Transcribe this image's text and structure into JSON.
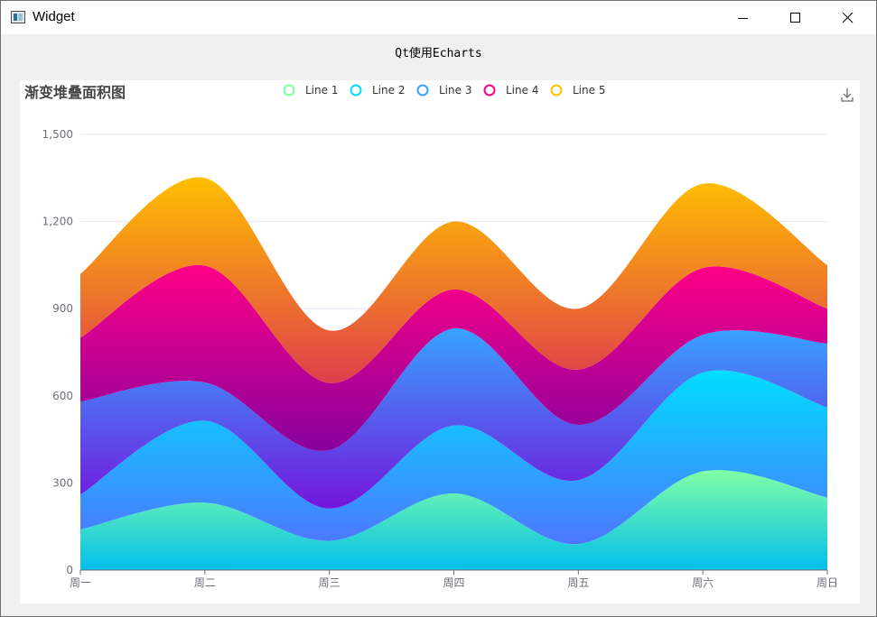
{
  "window": {
    "title": "Widget",
    "caption": "Qt使用Echarts"
  },
  "controls": {
    "minimize": "minimize",
    "maximize": "maximize",
    "close": "close"
  },
  "toolbox": {
    "save_icon": "download-icon"
  },
  "chart_data": {
    "type": "area",
    "stacked": true,
    "smooth": true,
    "title": "渐变堆叠面积图",
    "categories": [
      "周一",
      "周二",
      "周三",
      "周四",
      "周五",
      "周六",
      "周日"
    ],
    "y_ticks": [
      "0",
      "300",
      "600",
      "900",
      "1,200",
      "1,500"
    ],
    "ylim": [
      0,
      1500
    ],
    "grid": "horizontal",
    "legend_position": "top-center",
    "series": [
      {
        "name": "Line 1",
        "values": [
          140,
          232,
          101,
          264,
          90,
          340,
          250
        ],
        "legend_color": "#80FFA5",
        "gradient": [
          "#80FFA5",
          "#01BFEC"
        ]
      },
      {
        "name": "Line 2",
        "values": [
          120,
          282,
          111,
          234,
          220,
          340,
          310
        ],
        "legend_color": "#00DDFF",
        "gradient": [
          "#00DDFF",
          "#4D77FF"
        ]
      },
      {
        "name": "Line 3",
        "values": [
          320,
          132,
          201,
          334,
          190,
          130,
          220
        ],
        "legend_color": "#37A2FF",
        "gradient": [
          "#37A2FF",
          "#7415DB"
        ]
      },
      {
        "name": "Line 4",
        "values": [
          220,
          402,
          231,
          134,
          190,
          230,
          120
        ],
        "legend_color": "#FF0087",
        "gradient": [
          "#FF0087",
          "#87009D"
        ]
      },
      {
        "name": "Line 5",
        "values": [
          220,
          302,
          181,
          234,
          210,
          290,
          150
        ],
        "legend_color": "#FFBF00",
        "gradient": [
          "#FFBF00",
          "#E03E4C"
        ]
      }
    ]
  }
}
